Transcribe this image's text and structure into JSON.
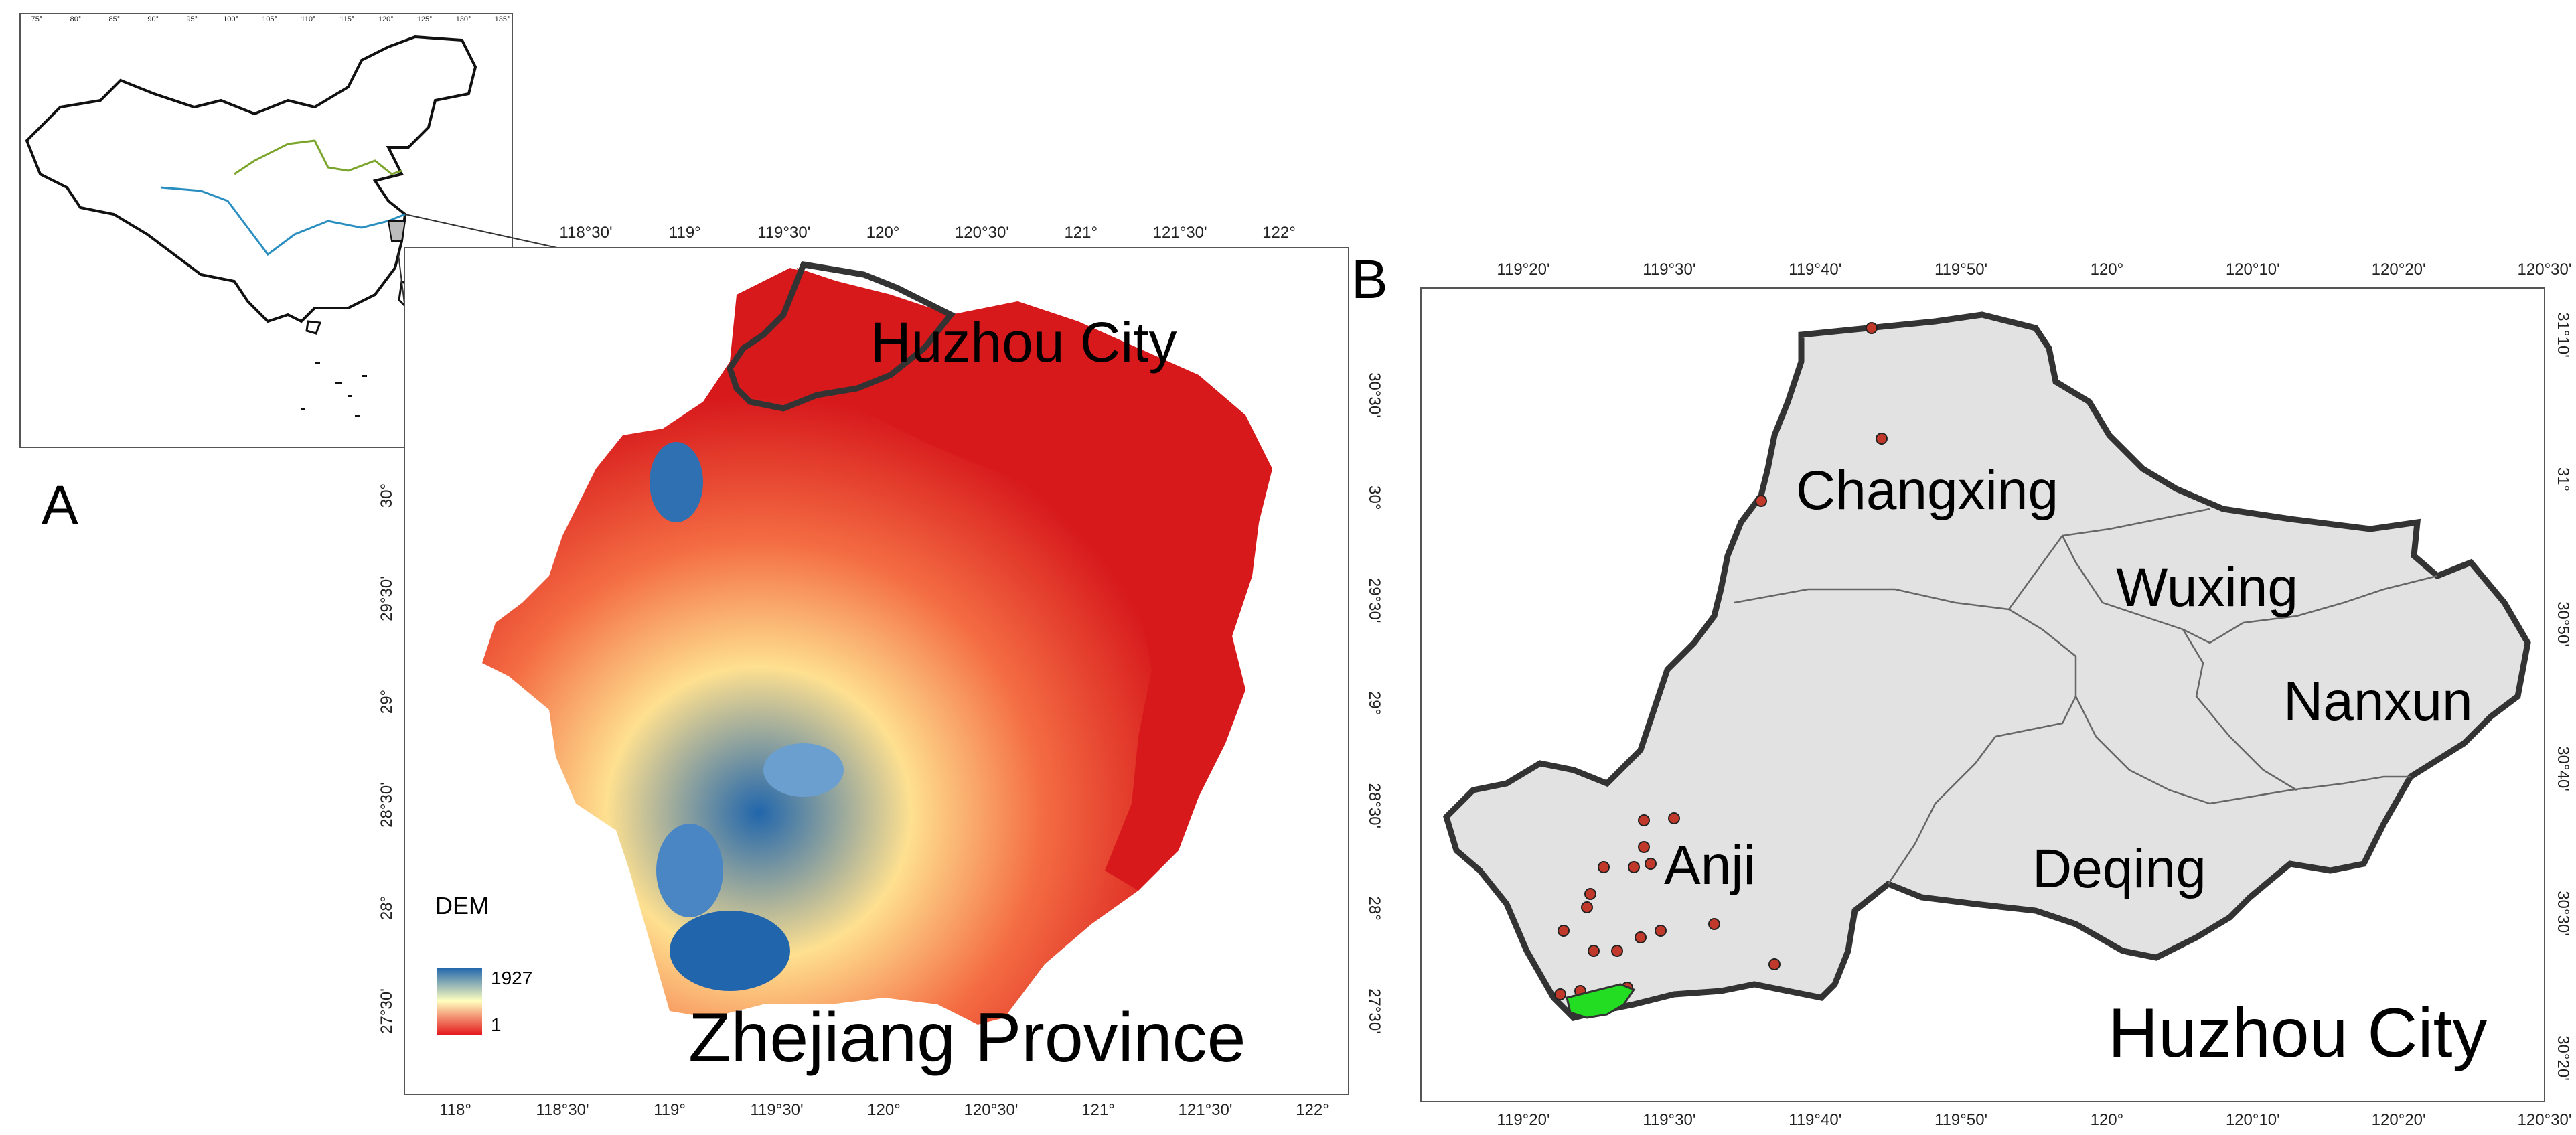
{
  "panel_a": {
    "letter": "A",
    "top_ticks": [
      "75°",
      "80°",
      "85°",
      "90°",
      "95°",
      "100°",
      "105°",
      "110°",
      "115°",
      "120°",
      "125°",
      "130°",
      "135°"
    ]
  },
  "panel_dem": {
    "top_ticks": [
      "118°30'",
      "119°",
      "119°30'",
      "120°",
      "120°30'",
      "121°",
      "121°30'",
      "122°"
    ],
    "bottom_ticks": [
      "118°",
      "118°30'",
      "119°",
      "119°30'",
      "120°",
      "120°30'",
      "121°",
      "121°30'",
      "122°"
    ],
    "left_ticks": [
      "30°",
      "29°30'",
      "29°",
      "28°30'",
      "28°",
      "27°30'"
    ],
    "right_ticks": [
      "30°30'",
      "30°",
      "29°30'",
      "29°",
      "28°30'",
      "28°",
      "27°30'"
    ],
    "region_label": "Huzhou City",
    "title": "Zhejiang Province",
    "legend": {
      "title": "DEM",
      "max": "1927",
      "min": "1",
      "high_color": "#2166ac",
      "mid_color": "#ffffbf",
      "low_color": "#e41a1c"
    }
  },
  "panel_b": {
    "letter": "B",
    "top_ticks": [
      "119°20'",
      "119°30'",
      "119°40'",
      "119°50'",
      "120°",
      "120°10'",
      "120°20'",
      "120°30'"
    ],
    "bottom_ticks": [
      "119°20'",
      "119°30'",
      "119°40'",
      "119°50'",
      "120°",
      "120°10'",
      "120°20'",
      "120°30'"
    ],
    "right_ticks": [
      "31°10'",
      "31°",
      "30°50'",
      "30°40'",
      "30°30'",
      "30°20'"
    ],
    "districts": [
      "Changxing",
      "Wuxing",
      "Nanxun",
      "Anji",
      "Deqing"
    ],
    "title": "Huzhou City",
    "colors": {
      "fill": "#e2e2e2",
      "border": "#333333",
      "site": "#c0392b",
      "highlight": "#22dd22"
    }
  }
}
